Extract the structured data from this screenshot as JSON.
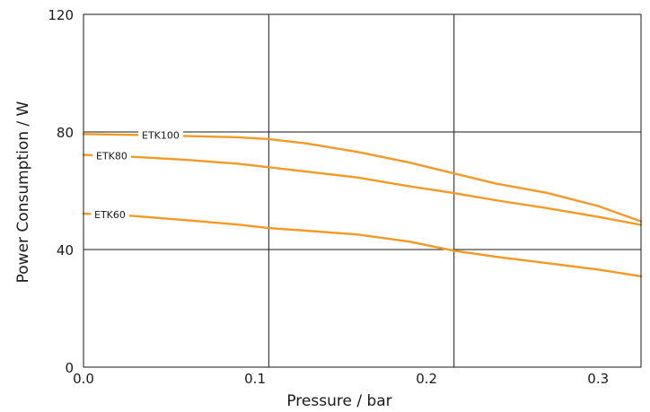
{
  "chart_data": {
    "type": "line",
    "xlabel": "Pressure / bar",
    "ylabel": "Power Consumption / W",
    "xlim": [
      0,
      0.325
    ],
    "ylim": [
      0,
      120
    ],
    "x_ticks": [
      0.0,
      0.1,
      0.2,
      0.3
    ],
    "x_tick_labels": [
      "0.0",
      "0.1",
      "0.2",
      "0.3"
    ],
    "x_gridlines": [
      0.108,
      0.216
    ],
    "y_ticks": [
      0,
      40,
      80,
      120
    ],
    "y_tick_labels": [
      "0",
      "40",
      "80",
      "120"
    ],
    "y_gridlines": [
      40,
      80
    ],
    "grid": true,
    "line_color": "#F39A26",
    "series": [
      {
        "name": "ETK100",
        "x": [
          0.0,
          0.03,
          0.06,
          0.09,
          0.108,
          0.13,
          0.16,
          0.19,
          0.216,
          0.24,
          0.27,
          0.3,
          0.325
        ],
        "y": [
          79.3,
          79.0,
          78.6,
          78.2,
          77.6,
          76.1,
          73.2,
          69.6,
          65.9,
          62.5,
          59.3,
          54.8,
          49.6
        ]
      },
      {
        "name": "ETK80",
        "x": [
          0.0,
          0.03,
          0.06,
          0.09,
          0.108,
          0.13,
          0.16,
          0.19,
          0.216,
          0.24,
          0.27,
          0.3,
          0.325
        ],
        "y": [
          72.2,
          71.5,
          70.5,
          69.2,
          68.0,
          66.5,
          64.5,
          61.5,
          59.2,
          56.8,
          54.1,
          51.1,
          48.4
        ]
      },
      {
        "name": "ETK60",
        "x": [
          0.0,
          0.03,
          0.06,
          0.09,
          0.108,
          0.13,
          0.16,
          0.19,
          0.216,
          0.24,
          0.27,
          0.3,
          0.325
        ],
        "y": [
          52.2,
          51.4,
          50.0,
          48.5,
          47.3,
          46.4,
          45.1,
          42.7,
          39.6,
          37.6,
          35.4,
          33.2,
          30.9
        ]
      }
    ]
  }
}
